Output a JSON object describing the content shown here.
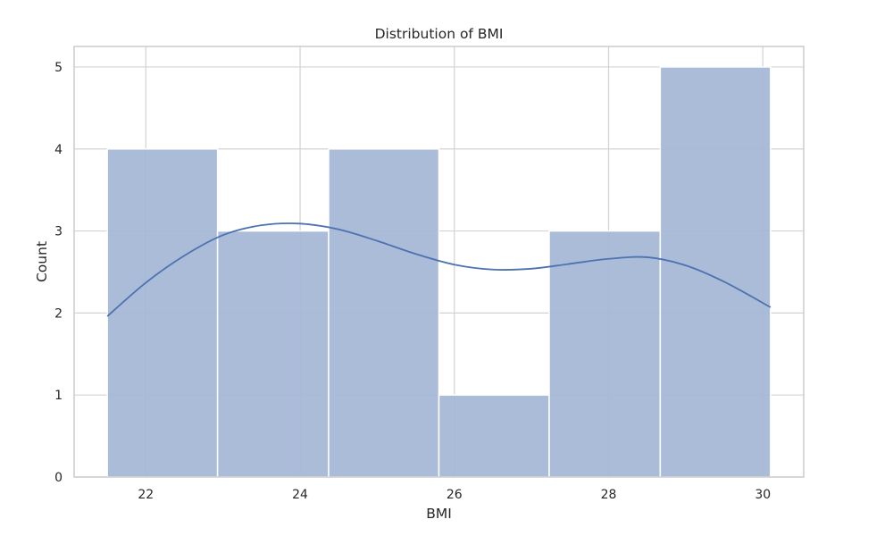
{
  "chart_data": {
    "type": "bar",
    "subtype": "histogram-with-kde",
    "title": "Distribution of BMI",
    "xlabel": "BMI",
    "ylabel": "Count",
    "xlim": [
      21.07,
      30.53
    ],
    "ylim": [
      0,
      5.25
    ],
    "x_ticks": [
      22,
      24,
      26,
      28,
      30
    ],
    "y_ticks": [
      0,
      1,
      2,
      3,
      4,
      5
    ],
    "bins": [
      {
        "start": 21.5,
        "end": 22.93,
        "count": 4
      },
      {
        "start": 22.93,
        "end": 24.37,
        "count": 3
      },
      {
        "start": 24.37,
        "end": 25.8,
        "count": 4
      },
      {
        "start": 25.8,
        "end": 27.23,
        "count": 1
      },
      {
        "start": 27.23,
        "end": 28.67,
        "count": 3
      },
      {
        "start": 28.67,
        "end": 30.1,
        "count": 5
      }
    ],
    "kde": {
      "x": [
        21.5,
        22.0,
        22.5,
        23.0,
        23.5,
        24.0,
        24.5,
        25.0,
        25.5,
        26.0,
        26.5,
        27.0,
        27.5,
        28.0,
        28.5,
        29.0,
        29.5,
        30.1
      ],
      "y": [
        1.96,
        2.37,
        2.7,
        2.95,
        3.07,
        3.09,
        3.02,
        2.88,
        2.72,
        2.59,
        2.53,
        2.54,
        2.6,
        2.66,
        2.68,
        2.58,
        2.38,
        2.07
      ]
    },
    "grid": true,
    "colors": {
      "bar_fill": "#a4b6d6",
      "bar_edge": "#ffffff",
      "kde_line": "#4c72b0",
      "grid": "#d3d3d3",
      "spine": "#cccccc",
      "text": "#262626"
    }
  }
}
